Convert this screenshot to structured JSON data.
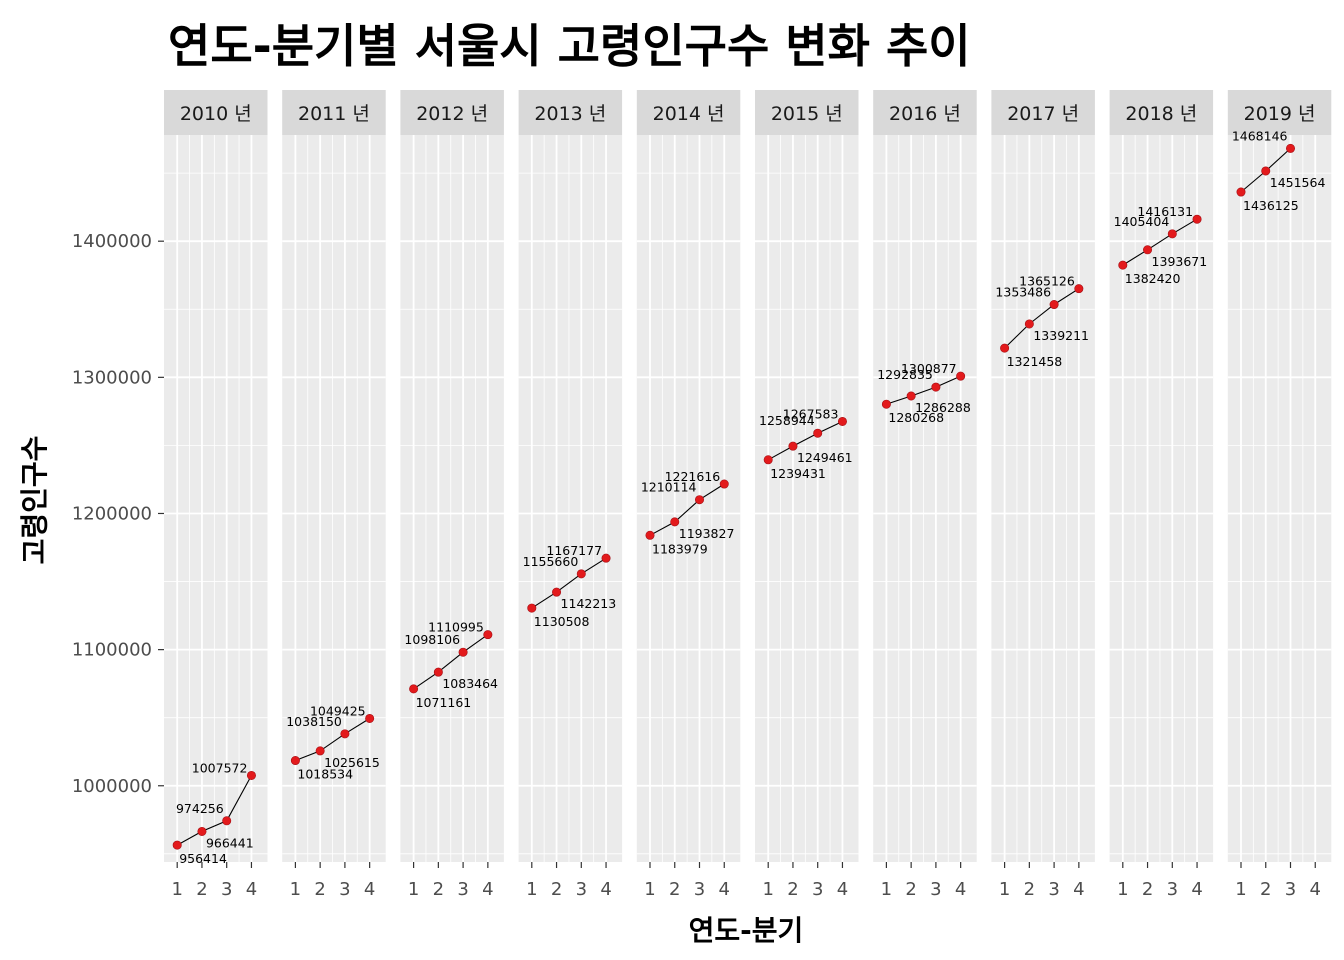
{
  "chart_data": {
    "type": "line",
    "title": "연도-분기별 서울시 고령인구수 변화 추이",
    "xlabel": "연도-분기",
    "ylabel": "고령인구수",
    "ylim": [
      944000,
      1478000
    ],
    "y_ticks": [
      1000000,
      1100000,
      1200000,
      1300000,
      1400000
    ],
    "x_ticks": [
      "1",
      "2",
      "3",
      "4"
    ],
    "facet_unit": "년",
    "grid": true,
    "line_color": "#000000",
    "point_color": "#e31a1c",
    "panel_background": "#ebebeb",
    "strip_background": "#d9d9d9",
    "panels": [
      {
        "year": "2010",
        "points": [
          {
            "q": 1,
            "value": 956414
          },
          {
            "q": 2,
            "value": 966441
          },
          {
            "q": 3,
            "value": 974256
          },
          {
            "q": 4,
            "value": 1007572
          }
        ]
      },
      {
        "year": "2011",
        "points": [
          {
            "q": 1,
            "value": 1018534
          },
          {
            "q": 2,
            "value": 1025615
          },
          {
            "q": 3,
            "value": 1038150
          },
          {
            "q": 4,
            "value": 1049425
          }
        ]
      },
      {
        "year": "2012",
        "points": [
          {
            "q": 1,
            "value": 1071161
          },
          {
            "q": 2,
            "value": 1083464
          },
          {
            "q": 3,
            "value": 1098106
          },
          {
            "q": 4,
            "value": 1110995
          }
        ]
      },
      {
        "year": "2013",
        "points": [
          {
            "q": 1,
            "value": 1130508
          },
          {
            "q": 2,
            "value": 1142213
          },
          {
            "q": 3,
            "value": 1155660
          },
          {
            "q": 4,
            "value": 1167177
          }
        ]
      },
      {
        "year": "2014",
        "points": [
          {
            "q": 1,
            "value": 1183979
          },
          {
            "q": 2,
            "value": 1193827
          },
          {
            "q": 3,
            "value": 1210114
          },
          {
            "q": 4,
            "value": 1221616
          }
        ]
      },
      {
        "year": "2015",
        "points": [
          {
            "q": 1,
            "value": 1239431
          },
          {
            "q": 2,
            "value": 1249461
          },
          {
            "q": 3,
            "value": 1258944
          },
          {
            "q": 4,
            "value": 1267583
          }
        ]
      },
      {
        "year": "2016",
        "points": [
          {
            "q": 1,
            "value": 1280268
          },
          {
            "q": 2,
            "value": 1286288
          },
          {
            "q": 3,
            "value": 1292835
          },
          {
            "q": 4,
            "value": 1300877
          }
        ]
      },
      {
        "year": "2017",
        "points": [
          {
            "q": 1,
            "value": 1321458
          },
          {
            "q": 2,
            "value": 1339211
          },
          {
            "q": 3,
            "value": 1353486
          },
          {
            "q": 4,
            "value": 1365126
          }
        ]
      },
      {
        "year": "2018",
        "points": [
          {
            "q": 1,
            "value": 1382420
          },
          {
            "q": 2,
            "value": 1393671
          },
          {
            "q": 3,
            "value": 1405404
          },
          {
            "q": 4,
            "value": 1416131
          }
        ]
      },
      {
        "year": "2019",
        "points": [
          {
            "q": 1,
            "value": 1436125
          },
          {
            "q": 2,
            "value": 1451564
          },
          {
            "q": 3,
            "value": 1468146
          }
        ]
      }
    ]
  }
}
